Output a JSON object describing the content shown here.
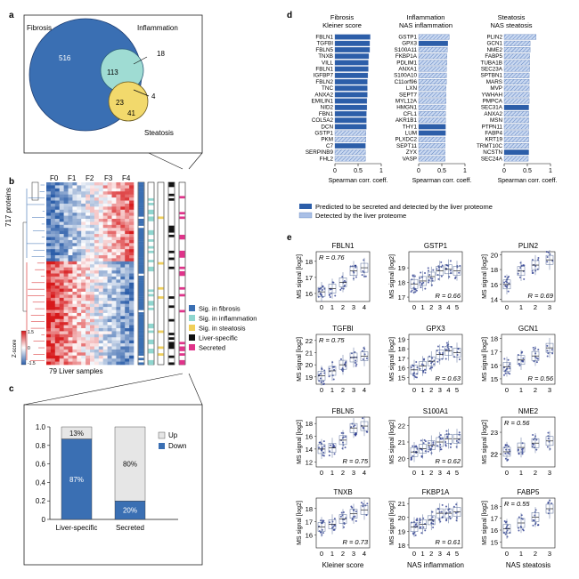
{
  "colors": {
    "fibrosis": "#3a6fb3",
    "inflammation": "#8fd6cf",
    "steatosis": "#f0cf5a",
    "liver_specific": "#111111",
    "secreted": "#e0338a",
    "bar_secreted": "#2c5ea9",
    "bar_detected": "#a9bfe6",
    "points": "#20308a",
    "heat_high": "#d7191c",
    "heat_low": "#3b6bb5",
    "up_grey": "#e6e6e6",
    "down_blue": "#3a6fb3"
  },
  "panel_letters": {
    "a": "a",
    "b": "b",
    "c": "c",
    "d": "d",
    "e": "e"
  },
  "venn": {
    "labels": {
      "fibrosis": "Fibrosis",
      "inflammation": "Inflammation",
      "steatosis": "Steatosis"
    },
    "counts": {
      "fib_only": "516",
      "fib_inf": "113",
      "inf_only": "18",
      "all_three": "4",
      "fib_ste": "23",
      "ste_only": "41"
    }
  },
  "heatmap": {
    "col_labels": [
      "F0",
      "F1",
      "F2",
      "F3",
      "F4"
    ],
    "ylabel": "717 proteins",
    "xlabel": "79 Liver samples",
    "zscore_title": "Z-score",
    "zscore_ticks": [
      "1.5",
      "0",
      "-1.5"
    ],
    "legend": [
      {
        "label": "Sig. in fibrosis",
        "key": "fibrosis"
      },
      {
        "label": "Sig. in inflammation",
        "key": "inflammation"
      },
      {
        "label": "Sig. in steatosis",
        "key": "steatosis"
      },
      {
        "label": "Liver-specific",
        "key": "liver_specific"
      },
      {
        "label": "Secreted",
        "key": "secreted"
      }
    ]
  },
  "chart_data": [
    {
      "panel": "c",
      "type": "bar",
      "stacked": true,
      "categories": [
        "Liver-specific",
        "Secreted"
      ],
      "series": [
        {
          "name": "Down",
          "values": [
            0.87,
            0.2
          ],
          "labels": [
            "87%",
            "20%"
          ]
        },
        {
          "name": "Up",
          "values": [
            0.13,
            0.8
          ],
          "labels": [
            "13%",
            "80%"
          ]
        }
      ],
      "ylim": [
        0,
        1.0
      ],
      "yticks": [
        "0",
        "0.2",
        "0.4",
        "0.6",
        "0.8",
        "1.0"
      ],
      "legend_position": "right"
    },
    {
      "panel": "d",
      "type": "bar",
      "orientation": "horizontal",
      "xlabel": "Spearman corr. coeff.",
      "xticks": [
        "0",
        "0.5",
        "1"
      ],
      "xlim": [
        0,
        1
      ],
      "legend": [
        "Predicted to be secreted and detected by the liver proteome",
        "Detected by the liver proteome"
      ],
      "groups": [
        {
          "title": "Fibrosis",
          "subtitle": "Kleiner score",
          "proteins": [
            "FBLN1",
            "TGFBI",
            "FBLN5",
            "TNXB",
            "VILL",
            "FBLN1",
            "IGFBP7",
            "FBLN2",
            "TNC",
            "ANXA2",
            "EMILIN1",
            "NID2",
            "FBN1",
            "COL5A2",
            "DCN",
            "GSTP1",
            "PKM",
            "C7",
            "SERPINB9",
            "FHL2"
          ],
          "values": [
            0.76,
            0.75,
            0.75,
            0.73,
            0.72,
            0.72,
            0.71,
            0.7,
            0.7,
            0.7,
            0.69,
            0.69,
            0.68,
            0.68,
            0.68,
            0.67,
            0.67,
            0.66,
            0.66,
            0.66
          ],
          "secreted": [
            1,
            1,
            1,
            1,
            1,
            1,
            1,
            1,
            1,
            1,
            1,
            1,
            1,
            1,
            1,
            0,
            0,
            1,
            0,
            0
          ]
        },
        {
          "title": "Inflammation",
          "subtitle": "NAS inflammation",
          "proteins": [
            "GSTP1",
            "GPX3",
            "S100A11",
            "FKBP1A",
            "PDLIM1",
            "ANXA1",
            "S100A10",
            "C11orf96",
            "LXN",
            "SEPT7",
            "MYL12A",
            "HMGN1",
            "CFL1",
            "AKR1B1",
            "THY1",
            "LUM",
            "PLXDC2",
            "SEPT11",
            "ZYX",
            "VASP"
          ],
          "values": [
            0.66,
            0.63,
            0.62,
            0.61,
            0.61,
            0.6,
            0.6,
            0.6,
            0.59,
            0.59,
            0.59,
            0.58,
            0.58,
            0.58,
            0.58,
            0.58,
            0.57,
            0.57,
            0.57,
            0.57
          ],
          "secreted": [
            0,
            1,
            0,
            0,
            0,
            0,
            0,
            0,
            0,
            0,
            0,
            0,
            0,
            0,
            1,
            1,
            0,
            0,
            0,
            0
          ]
        },
        {
          "title": "Steatosis",
          "subtitle": "NAS steatosis",
          "proteins": [
            "PLIN2",
            "GCN1",
            "NME2",
            "FABP5",
            "TUBA1B",
            "SEC23A",
            "SPTBN1",
            "MARS",
            "MVP",
            "YWHAH",
            "PMPCA",
            "SEC31A",
            "ANXA2",
            "MSN",
            "PTPN11",
            "FABP4",
            "KRT19",
            "TRMT10C",
            "NCSTN",
            "SEC24A"
          ],
          "values": [
            0.69,
            0.56,
            0.56,
            0.55,
            0.55,
            0.55,
            0.54,
            0.54,
            0.54,
            0.54,
            0.54,
            0.53,
            0.53,
            0.53,
            0.53,
            0.53,
            0.53,
            0.53,
            0.53,
            0.52
          ],
          "secreted": [
            0,
            0,
            0,
            0,
            0,
            0,
            0,
            0,
            0,
            0,
            0,
            1,
            0,
            0,
            0,
            0,
            0,
            0,
            1,
            0
          ]
        }
      ]
    },
    {
      "panel": "e",
      "type": "scatter",
      "ylabel": "MS signal [log2]",
      "column_xlabels": [
        "Kleiner score",
        "NAS inflammation",
        "NAS steatosis"
      ],
      "plots": [
        {
          "title": "FBLN1",
          "x_categories": [
            "0",
            "1",
            "2",
            "3",
            "4"
          ],
          "ylim": [
            15.5,
            18.6
          ],
          "yticks": [
            "16",
            "17",
            "18"
          ],
          "r": "R = 0.76",
          "medians": [
            16.1,
            16.3,
            16.7,
            17.4,
            17.6
          ]
        },
        {
          "title": "GSTP1",
          "x_categories": [
            "0",
            "1",
            "2",
            "3",
            "4",
            "5"
          ],
          "ylim": [
            16.7,
            20.1
          ],
          "yticks": [
            "17",
            "18",
            "19"
          ],
          "r": "R = 0.66",
          "medians": [
            17.9,
            18.1,
            18.4,
            18.8,
            18.9,
            18.8
          ]
        },
        {
          "title": "PLIN2",
          "x_categories": [
            "0",
            "1",
            "2",
            "3"
          ],
          "ylim": [
            13.7,
            20.4
          ],
          "yticks": [
            "14",
            "16",
            "18",
            "20"
          ],
          "r": "R = 0.69",
          "medians": [
            16.0,
            17.8,
            18.6,
            19.3
          ]
        },
        {
          "title": "TGFBI",
          "x_categories": [
            "0",
            "1",
            "2",
            "3",
            "4"
          ],
          "ylim": [
            18.4,
            22.5
          ],
          "yticks": [
            "19",
            "20",
            "21",
            "22"
          ],
          "r": "R = 0.75",
          "medians": [
            19.1,
            19.5,
            20.0,
            20.6,
            20.7
          ]
        },
        {
          "title": "GPX3",
          "x_categories": [
            "0",
            "1",
            "2",
            "3",
            "4",
            "5"
          ],
          "ylim": [
            14.3,
            19.5
          ],
          "yticks": [
            "15",
            "16",
            "17",
            "18",
            "19"
          ],
          "r": "R = 0.63",
          "medians": [
            15.8,
            16.2,
            16.7,
            17.4,
            17.8,
            17.6
          ]
        },
        {
          "title": "GCN1",
          "x_categories": [
            "0",
            "1",
            "2",
            "3"
          ],
          "ylim": [
            14.6,
            18.3
          ],
          "yticks": [
            "15",
            "16",
            "17",
            "18"
          ],
          "r": "R = 0.56",
          "medians": [
            15.9,
            16.4,
            16.7,
            17.3
          ]
        },
        {
          "title": "FBLN5",
          "x_categories": [
            "0",
            "1",
            "2",
            "3",
            "4"
          ],
          "ylim": [
            11.2,
            19.0
          ],
          "yticks": [
            "12",
            "14",
            "16",
            "18"
          ],
          "r": "R = 0.75",
          "medians": [
            14.0,
            14.2,
            15.4,
            17.3,
            17.6
          ]
        },
        {
          "title": "S100A1",
          "x_categories": [
            "0",
            "1",
            "2",
            "3",
            "4",
            "5"
          ],
          "ylim": [
            19.5,
            22.5
          ],
          "yticks": [
            "20",
            "21",
            "22"
          ],
          "r": "R = 0.62",
          "medians": [
            20.4,
            20.6,
            20.8,
            21.0,
            21.2,
            21.2
          ]
        },
        {
          "title": "NME2",
          "x_categories": [
            "0",
            "1",
            "2",
            "3"
          ],
          "ylim": [
            21.4,
            23.7
          ],
          "yticks": [
            "22",
            "22",
            "23"
          ],
          "r": "R = 0.56",
          "medians": [
            22.1,
            22.3,
            22.5,
            22.6
          ]
        },
        {
          "title": "TNXB",
          "x_categories": [
            "0",
            "1",
            "2",
            "3",
            "4"
          ],
          "ylim": [
            15.0,
            18.8
          ],
          "yticks": [
            "16",
            "17",
            "18"
          ],
          "r": "R = 0.73",
          "medians": [
            16.6,
            16.8,
            17.2,
            17.6,
            17.9
          ]
        },
        {
          "title": "FKBP1A",
          "x_categories": [
            "0",
            "1",
            "2",
            "3",
            "4",
            "5"
          ],
          "ylim": [
            17.8,
            21.4
          ],
          "yticks": [
            "18",
            "19",
            "20",
            "21"
          ],
          "r": "R = 0.61",
          "medians": [
            19.3,
            19.5,
            19.8,
            20.3,
            20.3,
            20.4
          ]
        },
        {
          "title": "FABP5",
          "x_categories": [
            "0",
            "1",
            "2",
            "3"
          ],
          "ylim": [
            14.5,
            18.7
          ],
          "yticks": [
            "15",
            "16",
            "17",
            "18"
          ],
          "r": "R = 0.55",
          "medians": [
            16.1,
            16.6,
            17.1,
            17.8
          ]
        }
      ]
    }
  ]
}
